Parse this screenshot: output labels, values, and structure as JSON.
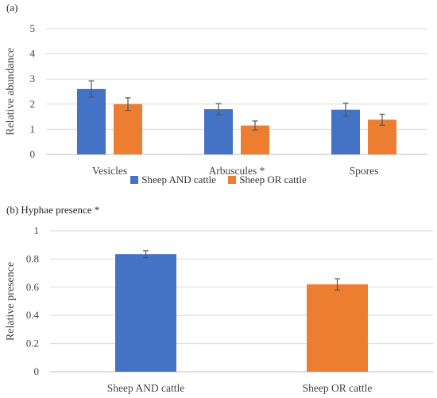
{
  "panel_a_label": "(a)",
  "panel_b_label": "(b) Hyphae presence *",
  "colors": {
    "blue": "#4472c4",
    "orange": "#ed7d31"
  },
  "chart_data": [
    {
      "type": "bar",
      "ylabel": "Relative abundance",
      "ylim": [
        0,
        5
      ],
      "yticks": [
        "0",
        "1",
        "2",
        "3",
        "4",
        "5"
      ],
      "grid": true,
      "legend_position": "bottom",
      "categories": [
        "Vesicles",
        "Arbuscules *",
        "Spores"
      ],
      "series": [
        {
          "name": "Sheep AND cattle",
          "color": "#4472c4",
          "values": [
            2.6,
            1.8,
            1.78
          ],
          "errors": [
            0.32,
            0.22,
            0.26
          ]
        },
        {
          "name": "Sheep OR cattle",
          "color": "#ed7d31",
          "values": [
            2.0,
            1.15,
            1.38
          ],
          "errors": [
            0.25,
            0.18,
            0.22
          ]
        }
      ]
    },
    {
      "type": "bar",
      "ylabel": "Relative presence",
      "ylim": [
        0,
        1
      ],
      "yticks": [
        "0",
        "0.2",
        "0.4",
        "0.6",
        "0.8",
        "1"
      ],
      "grid": true,
      "categories": [
        "Sheep AND cattle",
        "Sheep OR cattle"
      ],
      "series": [
        {
          "colors": [
            "#4472c4",
            "#ed7d31"
          ],
          "values": [
            0.835,
            0.62
          ],
          "errors": [
            0.025,
            0.04
          ]
        }
      ]
    }
  ]
}
